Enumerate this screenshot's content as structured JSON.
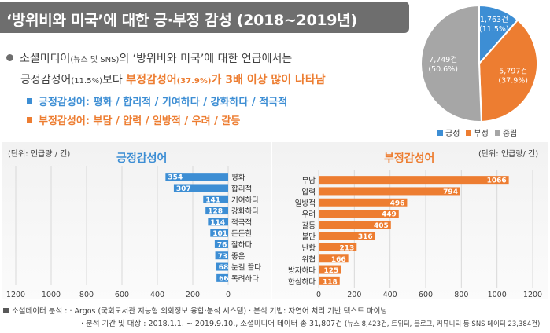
{
  "title": "‘방위비와 미국’에 대한 긍·부정 감성 (2018~2019년)",
  "summary": {
    "line1_prefix": "소셜미디어",
    "line1_small": "(뉴스 및 SNS)",
    "line1_suffix": "의 ‘방위비와 미국’에 대한 언급에서는",
    "line2_prefix": "긍정감성어",
    "line2_small": "(11.5%)",
    "line2_mid": "보다 ",
    "line2_highlight_a": "부정감성어",
    "line2_highlight_small": "(37.9%)",
    "line2_highlight_b": "가 3배 이상 많이 나타남",
    "positive_words": "긍정감성어: 평화 / 합리적 / 기여하다 / 강화하다 / 적극적",
    "negative_words": "부정감성어: 부담 / 압력 / 일방적 / 우려 / 갈등"
  },
  "footer": {
    "line1": "소셜데이터 분석 : · Argos (국회도서관 지능형 의회정보 융합·분석 시스템) · 분석 기법: 자연어 처리 기반 텍스트 마이닝",
    "line2": "· 분석 기간 및 대상 : 2018.1.1. ~ 2019.9.10., 소셜미디어 데이터 총 31,807건",
    "line2_small": "(뉴스 8,423건, 트위터, 블로그, 커뮤니티 등 SNS 데이터 23,384건)"
  },
  "colors": {
    "positive": "#3d8ed4",
    "negative": "#ed7d31",
    "neutral": "#a6a6a6"
  },
  "chart_data": [
    {
      "type": "pie",
      "categories": [
        "긍정",
        "부정",
        "중립"
      ],
      "values": [
        1763,
        5797,
        7749
      ],
      "labels": [
        "1,763건\n(11.5%)",
        "5,797건\n(37.9%)",
        "7,749건\n(50.6%)"
      ],
      "legend": [
        "긍정",
        "부정",
        "중립"
      ],
      "legend_placement": "bottom"
    },
    {
      "type": "bar",
      "orientation": "horizontal",
      "direction": "right-to-left",
      "title": "긍정감성어",
      "unit": "(단위: 언급량 / 건)",
      "categories": [
        "평화",
        "합리적",
        "기여하다",
        "강화하다",
        "적극적",
        "든든한",
        "잘하다",
        "좋은",
        "눈길 끌다",
        "독려하다"
      ],
      "values": [
        354,
        307,
        141,
        128,
        114,
        101,
        76,
        73,
        68,
        66
      ],
      "xlim": [
        0,
        1200
      ],
      "ticks": [
        "1200",
        "1000",
        "800",
        "600",
        "400",
        "200",
        "0"
      ],
      "grid": true
    },
    {
      "type": "bar",
      "orientation": "horizontal",
      "title": "부정감성어",
      "unit": "(단위: 언급량/ 건)",
      "categories": [
        "부담",
        "압력",
        "일방적",
        "우려",
        "갈등",
        "불만",
        "난항",
        "위협",
        "방자하다",
        "한심하다"
      ],
      "values": [
        1066,
        794,
        496,
        449,
        405,
        316,
        213,
        166,
        125,
        118
      ],
      "xlim": [
        0,
        1200
      ],
      "ticks": [
        "0",
        "200",
        "400",
        "600",
        "800",
        "1000",
        "1200"
      ],
      "grid": true
    }
  ]
}
